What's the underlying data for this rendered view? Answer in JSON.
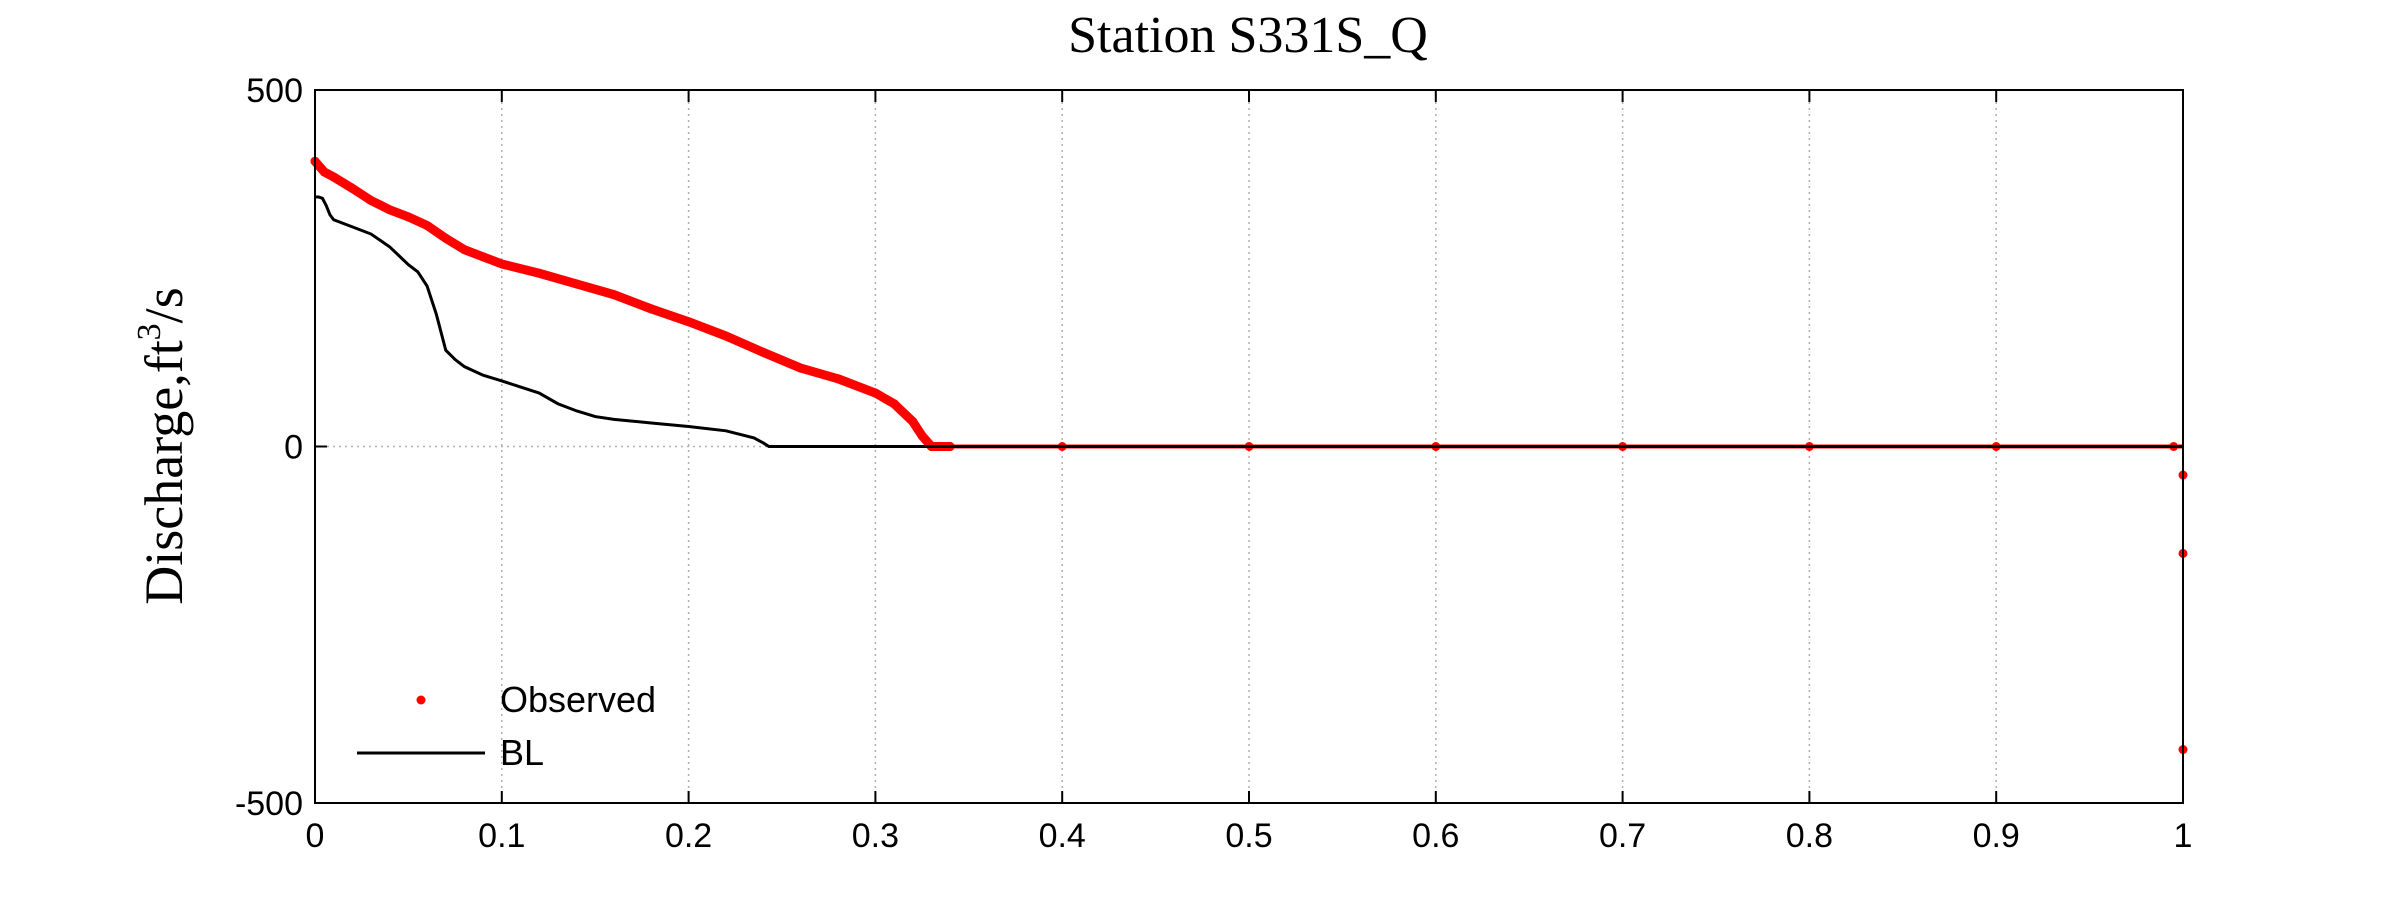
{
  "chart_data": {
    "type": "line",
    "title": "Station S331S_Q",
    "ylabel_main": "Discharge,ft",
    "ylabel_sup": "3",
    "ylabel_tail": "/s",
    "xlabel": "",
    "xlim": [
      0,
      1
    ],
    "ylim": [
      -500,
      500
    ],
    "xticks": [
      0,
      0.1,
      0.2,
      0.3,
      0.4,
      0.5,
      0.6,
      0.7,
      0.8,
      0.9,
      1
    ],
    "xtick_labels": [
      "0",
      "0.1",
      "0.2",
      "0.3",
      "0.4",
      "0.5",
      "0.6",
      "0.7",
      "0.8",
      "0.9",
      "1"
    ],
    "yticks": [
      -500,
      0,
      500
    ],
    "ytick_labels": [
      "-500",
      "0",
      "500"
    ],
    "grid": true,
    "legend_position": "bottom-left",
    "series": [
      {
        "name": "Observed",
        "style": "points",
        "color": "#ff0000",
        "x": [
          0.0,
          0.005,
          0.01,
          0.02,
          0.03,
          0.04,
          0.05,
          0.06,
          0.07,
          0.08,
          0.09,
          0.1,
          0.12,
          0.14,
          0.16,
          0.18,
          0.2,
          0.22,
          0.24,
          0.26,
          0.28,
          0.3,
          0.31,
          0.32,
          0.325,
          0.33,
          0.34,
          0.4,
          0.5,
          0.6,
          0.7,
          0.8,
          0.9,
          0.995,
          1.0,
          1.0,
          1.0
        ],
        "y": [
          400,
          385,
          378,
          362,
          345,
          332,
          322,
          310,
          292,
          276,
          266,
          256,
          243,
          228,
          213,
          193,
          175,
          155,
          132,
          110,
          95,
          75,
          60,
          35,
          15,
          0,
          0,
          0,
          0,
          0,
          0,
          0,
          0,
          0,
          -40,
          -150,
          -425
        ]
      },
      {
        "name": "BL",
        "style": "line",
        "color": "#000000",
        "x": [
          0.0,
          0.002,
          0.004,
          0.006,
          0.008,
          0.01,
          0.02,
          0.03,
          0.04,
          0.05,
          0.055,
          0.06,
          0.065,
          0.07,
          0.075,
          0.08,
          0.09,
          0.1,
          0.12,
          0.13,
          0.14,
          0.15,
          0.16,
          0.18,
          0.2,
          0.22,
          0.235,
          0.24,
          0.243,
          1.0
        ],
        "y": [
          350,
          350,
          348,
          338,
          325,
          318,
          308,
          298,
          280,
          255,
          245,
          225,
          185,
          135,
          122,
          112,
          100,
          92,
          75,
          60,
          50,
          42,
          38,
          33,
          28,
          22,
          12,
          5,
          0,
          0
        ]
      }
    ]
  }
}
